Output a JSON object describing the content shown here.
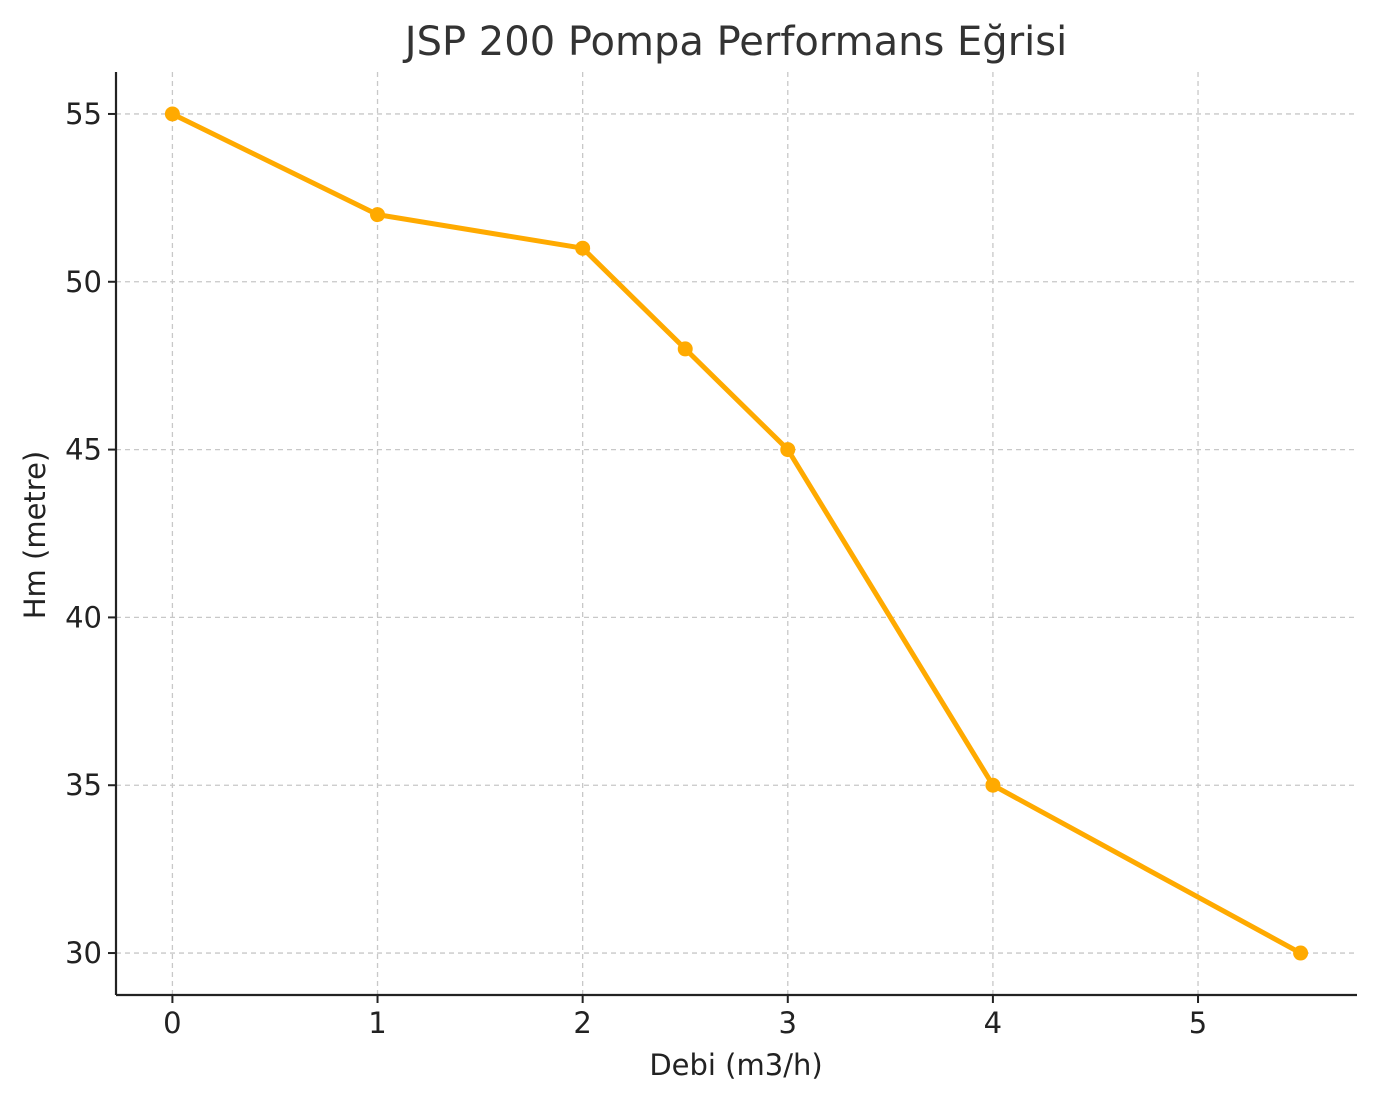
{
  "chart_data": {
    "type": "line",
    "title": "JSP 200 Pompa Performans Eğrisi",
    "xlabel": "Debi (m3/h)",
    "ylabel": "Hm (metre)",
    "x": [
      0,
      1,
      2,
      2.5,
      3,
      4,
      5.5
    ],
    "series": [
      {
        "values": [
          55,
          52,
          51,
          48,
          45,
          35,
          30
        ]
      }
    ],
    "xticks": [
      "0",
      "1",
      "2",
      "3",
      "4",
      "5"
    ],
    "yticks": [
      "30",
      "35",
      "40",
      "45",
      "50",
      "55"
    ],
    "xlim": [
      -0.275,
      5.775
    ],
    "ylim": [
      28.75,
      56.25
    ],
    "grid": true,
    "marker": "circle",
    "color": "#FFAA00"
  }
}
